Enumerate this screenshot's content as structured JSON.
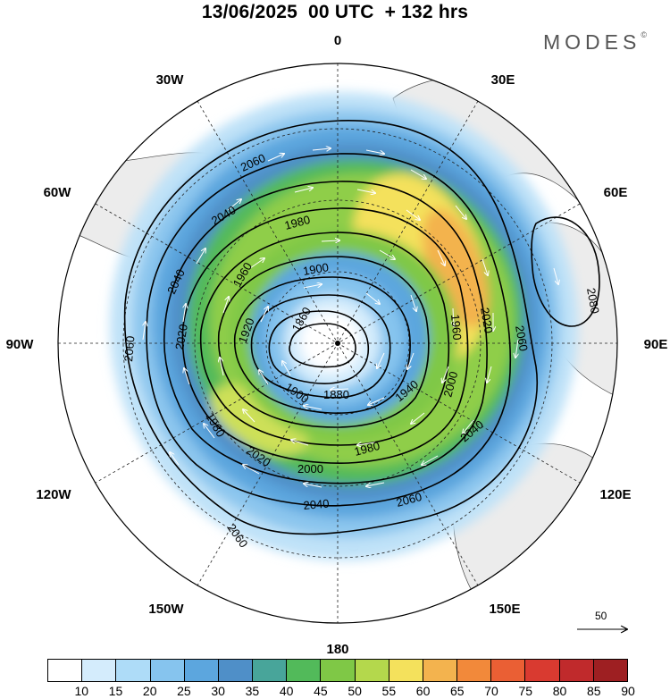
{
  "title": "13/06/2025  00 UTC  + 132 hrs",
  "brand": "MODES",
  "brand_mark": "©",
  "longitude_labels": {
    "n0": "0",
    "n30e": "30E",
    "n60e": "60E",
    "e90": "90E",
    "s120e": "120E",
    "s150e": "150E",
    "s180": "180",
    "s150w": "150W",
    "s120w": "120W",
    "w90": "90W",
    "n60w": "60W",
    "n30w": "30W"
  },
  "contour_labels": {
    "c2060a": "2060",
    "c2040a": "2040",
    "c1980a": "1980",
    "c2040b": "2040",
    "c1960a": "1960",
    "c1900": "1900",
    "c1860": "1860",
    "c1920": "1920",
    "c2020a": "2020",
    "c2060b": "2060",
    "c1980b": "1980",
    "c1900b": "1900",
    "c1880": "1880",
    "c1940": "1940",
    "c1980c": "1980",
    "c2000": "2000",
    "c2020b": "2020",
    "c2040c": "2040",
    "c2060c": "2060",
    "c2060d": "2060",
    "c1960b": "1960",
    "c2020c": "2020",
    "c2000b": "2000",
    "c2040d": "2040",
    "c2060e": "2060",
    "c2080": "2080"
  },
  "reference_vector": {
    "label": "50"
  },
  "colorbar": {
    "colors": [
      "#ffffff",
      "#d4ecfc",
      "#aedcf8",
      "#86c4ee",
      "#5ca6de",
      "#4f8fc8",
      "#48a59a",
      "#52ba5a",
      "#7fc846",
      "#b4d84c",
      "#f4e15c",
      "#f3b34e",
      "#f2893a",
      "#ea5f34",
      "#d93a30",
      "#c02a2c",
      "#9e1f22"
    ],
    "ticks": [
      "10",
      "15",
      "20",
      "25",
      "30",
      "35",
      "40",
      "45",
      "50",
      "55",
      "60",
      "65",
      "70",
      "75",
      "80",
      "85",
      "90"
    ]
  }
}
